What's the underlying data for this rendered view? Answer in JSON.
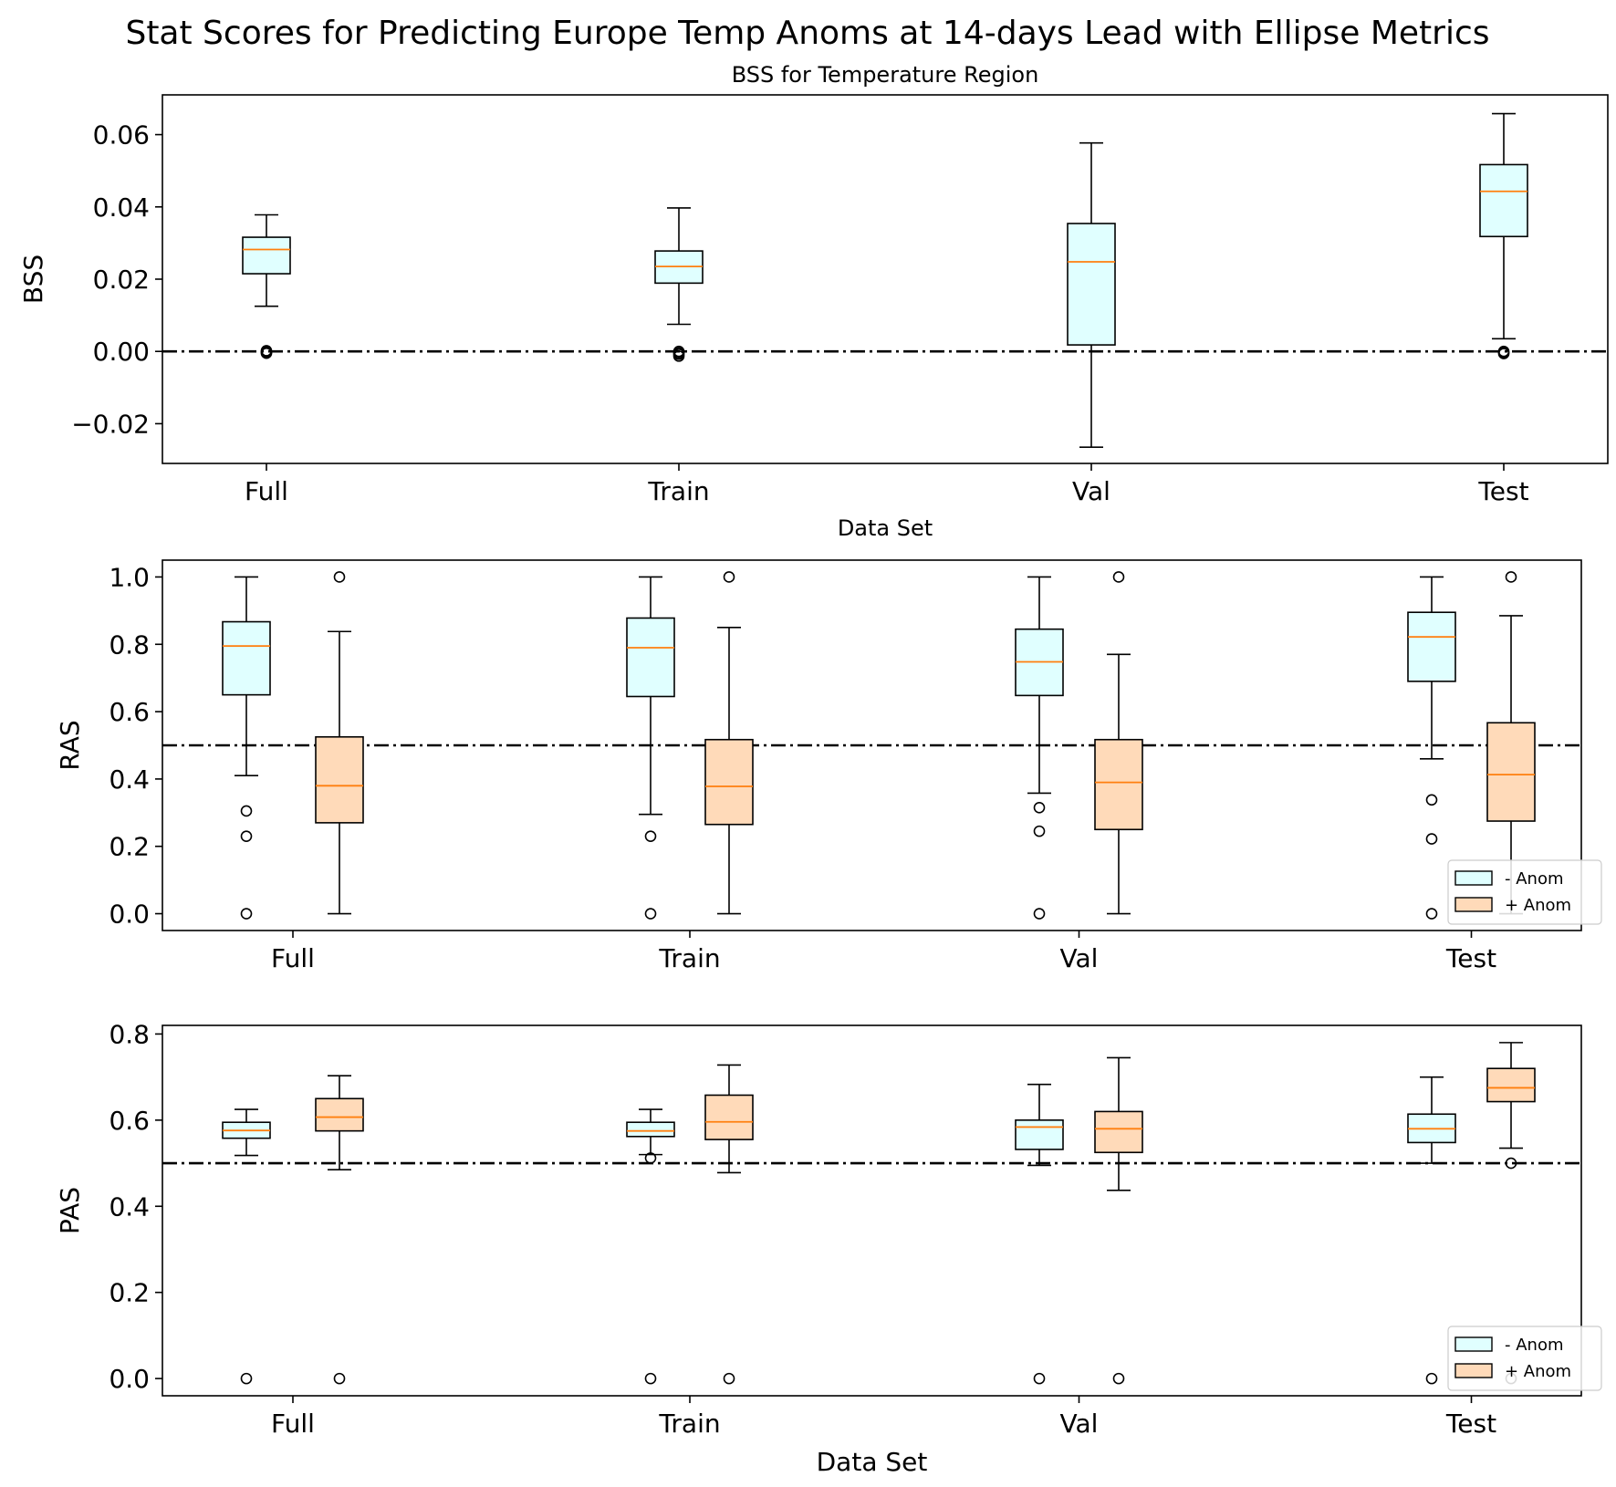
{
  "figure": {
    "title": "Stat Scores for Predicting Europe Temp Anoms at 14-days Lead with Ellipse Metrics"
  },
  "colors": {
    "neg_fill": "#e0ffff",
    "pos_fill": "#ffdab9",
    "median": "#ff7f0e",
    "line": "#000000"
  },
  "chart_data": [
    {
      "type": "box",
      "title": "BSS for Temperature Region",
      "xlabel": "Data Set",
      "ylabel": "BSS",
      "categories": [
        "Full",
        "Train",
        "Val",
        "Test"
      ],
      "ylim": [
        -0.031,
        0.071
      ],
      "yticks": [
        -0.02,
        0.0,
        0.02,
        0.04,
        0.06
      ],
      "ytick_labels": [
        "−0.02",
        "0.00",
        "0.02",
        "0.04",
        "0.06"
      ],
      "reference_line": 0.0,
      "series": [
        {
          "boxes": [
            {
              "whislo": 0.0125,
              "q1": 0.0215,
              "med": 0.0282,
              "q3": 0.0316,
              "whishi": 0.0378,
              "fliers": [
                0.0,
                -0.0005,
                0.0002,
                -0.0003
              ]
            },
            {
              "whislo": 0.0075,
              "q1": 0.0189,
              "med": 0.0235,
              "q3": 0.0278,
              "whishi": 0.0397,
              "fliers": [
                0.0,
                -0.0008,
                -0.0013,
                -0.0004
              ]
            },
            {
              "whislo": -0.0265,
              "q1": 0.0018,
              "med": 0.0248,
              "q3": 0.0354,
              "whishi": 0.0577,
              "fliers": []
            },
            {
              "whislo": 0.0035,
              "q1": 0.0318,
              "med": 0.0443,
              "q3": 0.0517,
              "whishi": 0.0658,
              "fliers": [
                0.0,
                -0.0006,
                -0.0003
              ]
            }
          ]
        }
      ]
    },
    {
      "type": "box",
      "xlabel": "",
      "ylabel": "RAS",
      "categories": [
        "Full",
        "Train",
        "Val",
        "Test"
      ],
      "ylim": [
        -0.05,
        1.05
      ],
      "yticks": [
        0.0,
        0.2,
        0.4,
        0.6,
        0.8,
        1.0
      ],
      "ytick_labels": [
        "0.0",
        "0.2",
        "0.4",
        "0.6",
        "0.8",
        "1.0"
      ],
      "reference_line": 0.5,
      "legend_position": "lower-right",
      "series": [
        {
          "name": "- Anom",
          "boxes": [
            {
              "whislo": 0.41,
              "q1": 0.65,
              "med": 0.795,
              "q3": 0.867,
              "whishi": 1.0,
              "fliers": [
                0.305,
                0.23,
                0.0
              ]
            },
            {
              "whislo": 0.295,
              "q1": 0.645,
              "med": 0.79,
              "q3": 0.878,
              "whishi": 1.0,
              "fliers": [
                0.23,
                0.0
              ]
            },
            {
              "whislo": 0.358,
              "q1": 0.648,
              "med": 0.748,
              "q3": 0.845,
              "whishi": 1.0,
              "fliers": [
                0.315,
                0.245,
                0.0
              ]
            },
            {
              "whislo": 0.46,
              "q1": 0.69,
              "med": 0.822,
              "q3": 0.895,
              "whishi": 1.0,
              "fliers": [
                0.338,
                0.222,
                0.0
              ]
            }
          ]
        },
        {
          "name": "+ Anom",
          "boxes": [
            {
              "whislo": 0.0,
              "q1": 0.27,
              "med": 0.38,
              "q3": 0.525,
              "whishi": 0.838,
              "fliers": [
                1.0
              ]
            },
            {
              "whislo": 0.0,
              "q1": 0.265,
              "med": 0.378,
              "q3": 0.517,
              "whishi": 0.85,
              "fliers": [
                1.0
              ]
            },
            {
              "whislo": 0.0,
              "q1": 0.25,
              "med": 0.39,
              "q3": 0.517,
              "whishi": 0.77,
              "fliers": [
                1.0
              ]
            },
            {
              "whislo": 0.0,
              "q1": 0.275,
              "med": 0.413,
              "q3": 0.567,
              "whishi": 0.885,
              "fliers": [
                1.0
              ]
            }
          ]
        }
      ]
    },
    {
      "type": "box",
      "xlabel": "Data Set",
      "ylabel": "PAS",
      "categories": [
        "Full",
        "Train",
        "Val",
        "Test"
      ],
      "ylim": [
        -0.04,
        0.82
      ],
      "yticks": [
        0.0,
        0.2,
        0.4,
        0.6,
        0.8
      ],
      "ytick_labels": [
        "0.0",
        "0.2",
        "0.4",
        "0.6",
        "0.8"
      ],
      "reference_line": 0.5,
      "legend_position": "lower-right",
      "series": [
        {
          "name": "- Anom",
          "boxes": [
            {
              "whislo": 0.518,
              "q1": 0.558,
              "med": 0.576,
              "q3": 0.595,
              "whishi": 0.625,
              "fliers": [
                0.0
              ]
            },
            {
              "whislo": 0.52,
              "q1": 0.562,
              "med": 0.575,
              "q3": 0.595,
              "whishi": 0.625,
              "fliers": [
                0.512,
                0.0
              ]
            },
            {
              "whislo": 0.495,
              "q1": 0.532,
              "med": 0.584,
              "q3": 0.6,
              "whishi": 0.683,
              "fliers": [
                0.0
              ]
            },
            {
              "whislo": 0.5,
              "q1": 0.548,
              "med": 0.58,
              "q3": 0.614,
              "whishi": 0.7,
              "fliers": [
                0.0
              ]
            }
          ]
        },
        {
          "name": "+ Anom",
          "boxes": [
            {
              "whislo": 0.485,
              "q1": 0.575,
              "med": 0.607,
              "q3": 0.65,
              "whishi": 0.703,
              "fliers": [
                0.0
              ]
            },
            {
              "whislo": 0.478,
              "q1": 0.555,
              "med": 0.596,
              "q3": 0.658,
              "whishi": 0.728,
              "fliers": [
                0.0
              ]
            },
            {
              "whislo": 0.437,
              "q1": 0.525,
              "med": 0.58,
              "q3": 0.62,
              "whishi": 0.745,
              "fliers": [
                0.0
              ]
            },
            {
              "whislo": 0.535,
              "q1": 0.643,
              "med": 0.675,
              "q3": 0.72,
              "whishi": 0.78,
              "fliers": [
                0.5,
                0.0
              ]
            }
          ]
        }
      ]
    }
  ]
}
